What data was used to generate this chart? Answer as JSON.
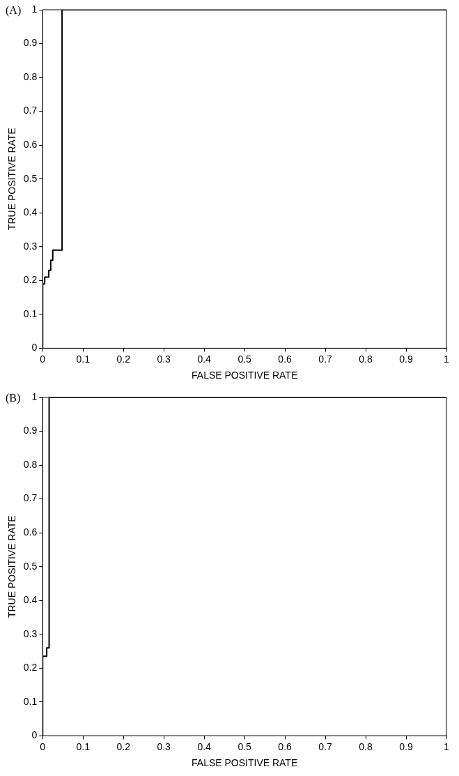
{
  "chart_data": [
    {
      "type": "line",
      "annotations": [
        "(A)"
      ],
      "xlabel": "FALSE POSITIVE RATE",
      "ylabel": "TRUE POSITIVE RATE",
      "xlim": [
        0,
        1
      ],
      "ylim": [
        0,
        1
      ],
      "xticks": [
        0,
        0.1,
        0.2,
        0.3,
        0.4,
        0.5,
        0.6,
        0.7,
        0.8,
        0.9,
        1
      ],
      "yticks": [
        0,
        0.1,
        0.2,
        0.3,
        0.4,
        0.5,
        0.6,
        0.7,
        0.8,
        0.9,
        1
      ],
      "grid": false,
      "legend": false,
      "marker": "none",
      "line_style": "solid",
      "series": [
        {
          "color": "#000000",
          "x": [
            0,
            0,
            0.005,
            0.005,
            0.015,
            0.015,
            0.02,
            0.02,
            0.025,
            0.025,
            0.048,
            0.048,
            1
          ],
          "values": [
            0,
            0.19,
            0.19,
            0.21,
            0.21,
            0.23,
            0.23,
            0.26,
            0.26,
            0.29,
            0.29,
            1,
            1
          ]
        }
      ]
    },
    {
      "type": "line",
      "annotations": [
        "(B)"
      ],
      "xlabel": "FALSE POSITIVE RATE",
      "ylabel": "TRUE POSITIVE RATE",
      "xlim": [
        0,
        1
      ],
      "ylim": [
        0,
        1
      ],
      "xticks": [
        0,
        0.1,
        0.2,
        0.3,
        0.4,
        0.5,
        0.6,
        0.7,
        0.8,
        0.9,
        1
      ],
      "yticks": [
        0,
        0.1,
        0.2,
        0.3,
        0.4,
        0.5,
        0.6,
        0.7,
        0.8,
        0.9,
        1
      ],
      "grid": false,
      "legend": false,
      "marker": "none",
      "line_style": "solid",
      "series": [
        {
          "color": "#000000",
          "x": [
            0,
            0,
            0.01,
            0.01,
            0.016,
            0.016,
            1
          ],
          "values": [
            0,
            0.235,
            0.235,
            0.26,
            0.26,
            1,
            1
          ]
        }
      ]
    }
  ]
}
